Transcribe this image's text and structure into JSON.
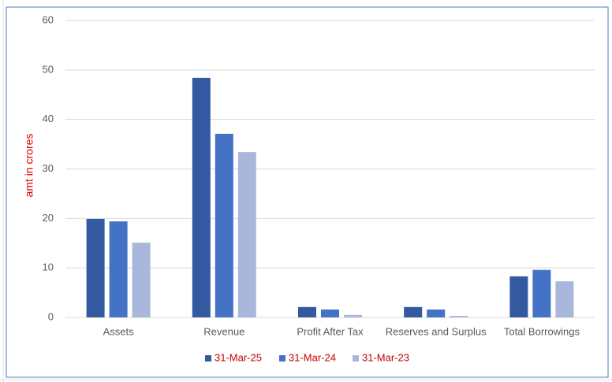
{
  "chart_data": {
    "type": "bar",
    "y_label": "amt in crores",
    "categories": [
      "Assets",
      "Revenue",
      "Profit After Tax",
      "Reserves and Surplus",
      "Total Borrowings"
    ],
    "series": [
      {
        "name": "31-Mar-25",
        "color": "#335aa1",
        "values": [
          19.9,
          48.4,
          2.1,
          2.1,
          8.3
        ]
      },
      {
        "name": "31-Mar-24",
        "color": "#4472c4",
        "values": [
          19.4,
          37.1,
          1.6,
          1.6,
          9.6
        ]
      },
      {
        "name": "31-Mar-23",
        "color": "#a9b7dc",
        "values": [
          15.1,
          33.4,
          0.5,
          0.3,
          7.3
        ]
      }
    ],
    "ylim": [
      0,
      60
    ],
    "yticks": [
      0,
      10,
      20,
      30,
      40,
      50,
      60
    ],
    "grid": true,
    "legend": "bottom",
    "legend_text_color": "#c00000",
    "y_label_color": "#e00000"
  }
}
